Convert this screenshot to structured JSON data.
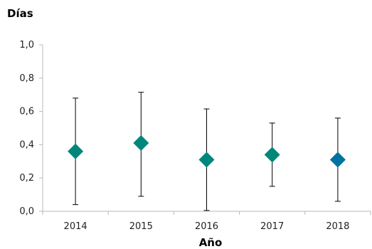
{
  "chart_data": {
    "type": "scatter",
    "title": "",
    "ylabel": "Días",
    "xlabel": "Año",
    "categories": [
      "2014",
      "2015",
      "2016",
      "2017",
      "2018"
    ],
    "series": [
      {
        "values": [
          0.36,
          0.41,
          0.31,
          0.34,
          0.31
        ],
        "error_low": [
          0.04,
          0.09,
          0.005,
          0.15,
          0.06
        ],
        "error_high": [
          0.68,
          0.715,
          0.615,
          0.53,
          0.56
        ],
        "colors": [
          "#00877a",
          "#00877a",
          "#00877a",
          "#00877a",
          "#0072a0"
        ]
      }
    ],
    "ylim": [
      0,
      1.0
    ],
    "yticks": [
      "0,0",
      "0,2",
      "0,4",
      "0,6",
      "0,8",
      "1,0"
    ],
    "grid": false,
    "marker": "diamond"
  }
}
